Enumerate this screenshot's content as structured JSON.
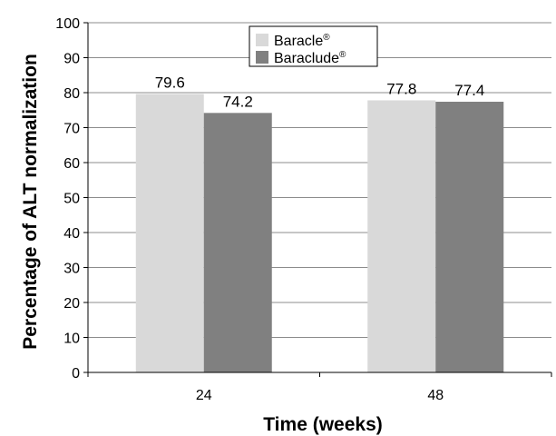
{
  "chart_data": {
    "type": "bar",
    "categories": [
      "24",
      "48"
    ],
    "series": [
      {
        "name": "Baracle",
        "name_sup": "®",
        "color": "#d9d9d9",
        "values": [
          79.6,
          77.8
        ],
        "labels": [
          "79.6",
          "77.8"
        ]
      },
      {
        "name": "Baraclude",
        "name_sup": "®",
        "color": "#808080",
        "values": [
          74.2,
          77.4
        ],
        "labels": [
          "74.2",
          "77.4"
        ]
      }
    ],
    "title": "",
    "xlabel": "Time (weeks)",
    "ylabel": "Percentage of ALT normalization",
    "ylim": [
      0,
      100
    ],
    "yticks": [
      "0",
      "10",
      "20",
      "30",
      "40",
      "50",
      "60",
      "70",
      "80",
      "90",
      "100"
    ],
    "grid": true,
    "legend": "top-center"
  }
}
